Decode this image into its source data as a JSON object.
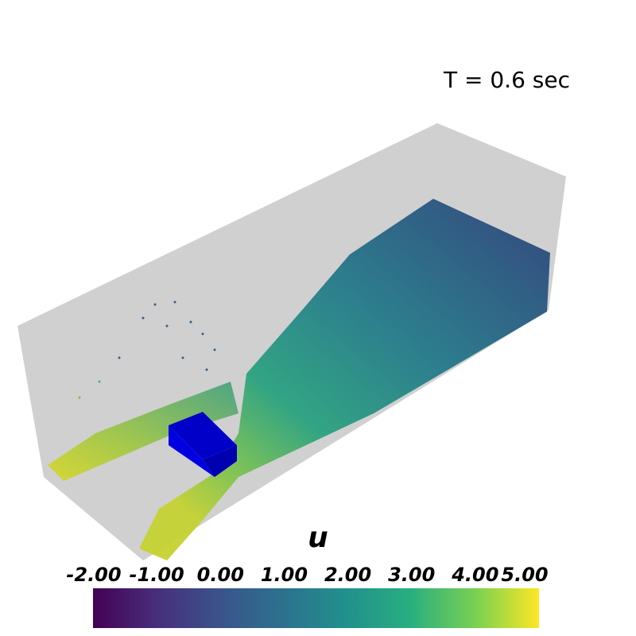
{
  "annotation": "T = 0.6 sec",
  "colorbar": {
    "title": "u",
    "range": [
      -2,
      5
    ],
    "ticks": [
      {
        "value": -2,
        "label": "-2.00"
      },
      {
        "value": -1,
        "label": "-1.00"
      },
      {
        "value": 0,
        "label": "0.00"
      },
      {
        "value": 1,
        "label": "1.00"
      },
      {
        "value": 2,
        "label": "2.00"
      },
      {
        "value": 3,
        "label": "3.00"
      },
      {
        "value": 4,
        "label": "4.00"
      },
      {
        "value": 5,
        "label": "5.00"
      }
    ]
  }
}
